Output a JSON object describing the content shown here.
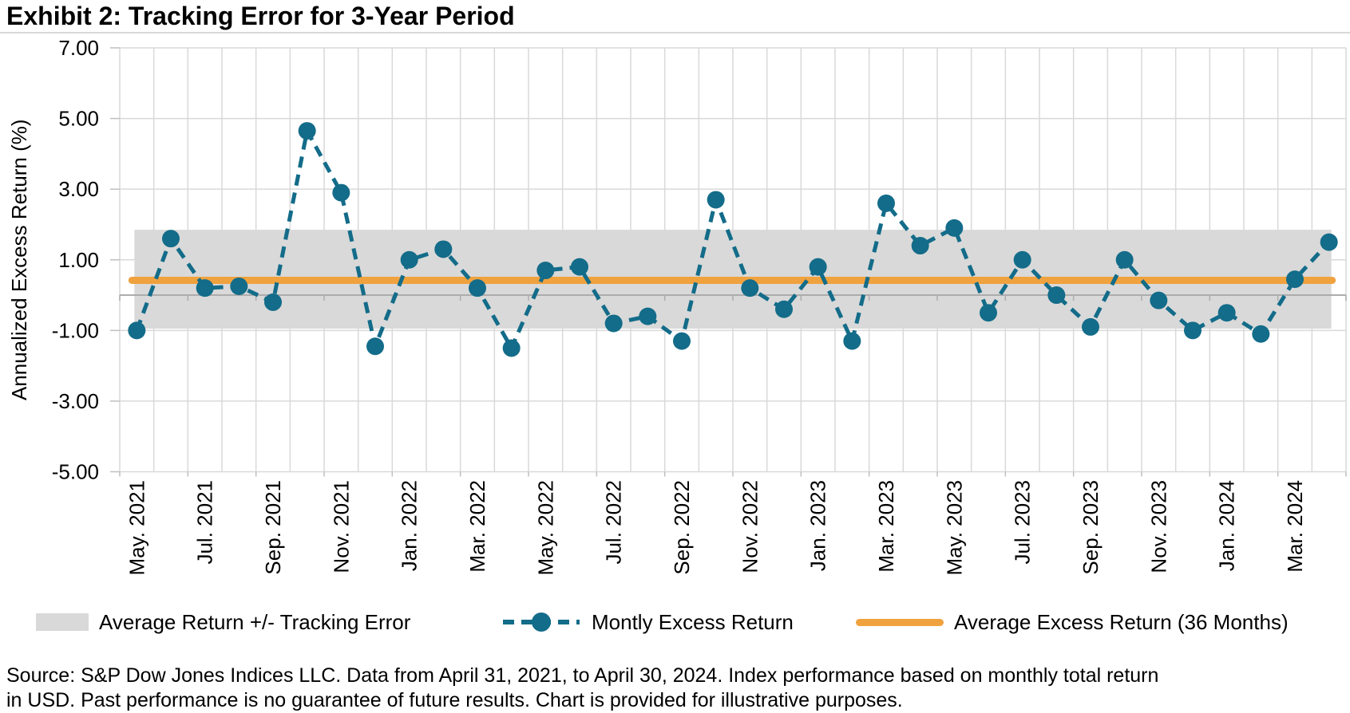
{
  "title": "Exhibit 2: Tracking Error for 3-Year Period",
  "colors": {
    "teal": "#136C89",
    "orange": "#F0A23F",
    "band_gray": "#D9D9D9",
    "gridline": "#D9D9D9",
    "axis_line": "#BFBFBF",
    "zero_axis": "#ACACAC",
    "text": "#000000"
  },
  "chart_data": {
    "type": "line",
    "title": "Exhibit 2: Tracking Error for 3-Year Period",
    "xlabel": "",
    "ylabel": "Annualized Excess Return (%)",
    "ylim": [
      -5.0,
      7.0
    ],
    "ytick_values": [
      7,
      5,
      3,
      1,
      -1,
      -3,
      -5
    ],
    "ytick_labels": [
      "7.00",
      "5.00",
      "3.00",
      "1.00",
      "-1.00",
      "-3.00",
      "-5.00"
    ],
    "grid": "both",
    "legend_position": "bottom",
    "x": [
      "May 2021",
      "Jun 2021",
      "Jul 2021",
      "Aug 2021",
      "Sep 2021",
      "Oct 2021",
      "Nov 2021",
      "Dec 2021",
      "Jan 2022",
      "Feb 2022",
      "Mar 2022",
      "Apr 2022",
      "May 2022",
      "Jun 2022",
      "Jul 2022",
      "Aug 2022",
      "Sep 2022",
      "Oct 2022",
      "Nov 2022",
      "Dec 2022",
      "Jan 2023",
      "Feb 2023",
      "Mar 2023",
      "Apr 2023",
      "May 2023",
      "Jun 2023",
      "Jul 2023",
      "Aug 2023",
      "Sep 2023",
      "Oct 2023",
      "Nov 2023",
      "Dec 2023",
      "Jan 2024",
      "Feb 2024",
      "Mar 2024",
      "Apr 2024"
    ],
    "x_axis_tick_labels": [
      "May. 2021",
      "Jul. 2021",
      "Sep. 2021",
      "Nov. 2021",
      "Jan. 2022",
      "Mar. 2022",
      "May. 2022",
      "Jul. 2022",
      "Sep. 2022",
      "Nov. 2022",
      "Jan. 2023",
      "Mar. 2023",
      "May. 2023",
      "Jul. 2023",
      "Sep. 2023",
      "Nov. 2023",
      "Jan. 2024",
      "Mar. 2024"
    ],
    "x_label_every": 2,
    "series": [
      {
        "name": "Average Return +/- Tracking Error",
        "type": "band",
        "upper": 1.85,
        "lower": -0.95,
        "color": "#D9D9D9"
      },
      {
        "name": "Montly Excess Return",
        "type": "line",
        "style": "dashed-with-circle-markers",
        "color": "#136C89",
        "values": [
          -1.0,
          1.6,
          0.2,
          0.25,
          -0.2,
          4.65,
          2.9,
          -1.45,
          1.0,
          1.3,
          0.2,
          -1.5,
          0.7,
          0.8,
          -0.8,
          -0.6,
          -1.3,
          2.7,
          0.2,
          -0.4,
          0.8,
          -1.3,
          2.6,
          1.4,
          1.9,
          -0.5,
          1.0,
          0.0,
          -0.9,
          1.0,
          -0.15,
          -1.0,
          -0.5,
          -1.1,
          0.45,
          1.5
        ]
      },
      {
        "name": "Average Excess Return (36 Months)",
        "type": "hline",
        "value": 0.42,
        "color": "#F0A23F"
      }
    ]
  },
  "legend": {
    "items": [
      {
        "label": "Average Return +/- Tracking Error",
        "swatch": "gray-band-rect"
      },
      {
        "label": "Montly Excess Return",
        "swatch": "teal-dashed-line-with-dot"
      },
      {
        "label": "Average Excess Return (36 Months)",
        "swatch": "orange-line"
      }
    ]
  },
  "source_note": {
    "lines": [
      "Source: S&P Dow Jones Indices LLC. Data from April 31, 2021, to April 30, 2024. Index performance based on monthly total return",
      "in USD. Past performance is no guarantee of future results. Chart is provided for illustrative purposes."
    ]
  }
}
